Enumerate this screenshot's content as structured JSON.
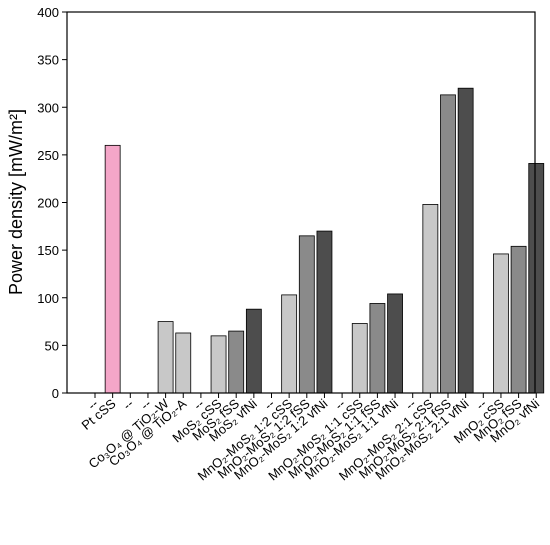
{
  "chart_data": {
    "type": "bar",
    "title": "",
    "xlabel": "",
    "ylabel": "Power density [mW/m²]",
    "ylim": [
      0,
      400
    ],
    "yticks": [
      0,
      50,
      100,
      150,
      200,
      250,
      300,
      350,
      400
    ],
    "grid": false,
    "legend": "none",
    "categories": [
      "--",
      "Pt cSS",
      "--",
      "--",
      "Co₃O₄ @ TiO₂-W",
      "Co₃O₄ @ TiO₂-A",
      "--",
      "MoS₂ cSS",
      "MoS₂ fSS",
      "MoS₂ vfNi",
      "--",
      "MnO₂-MoS₂ 1:2 cSS",
      "MnO₂-MoS₂ 1:2 fSS",
      "MnO₂-MoS₂ 1:2 vfNi",
      "--",
      "MnO₂-MoS₂ 1:1 cSS",
      "MnO₂-MoS₂ 1:1 fSS",
      "MnO₂-MoS₂ 1:1 vfNi",
      "--",
      "MnO₂-MoS₂ 2:1 cSS",
      "MnO₂-MoS₂ 2:1 fSS",
      "MnO₂-MoS₂ 2:1 vfNi",
      "--",
      "MnO₂ cSS",
      "MnO₂ fSS",
      "MnO₂ vfNi"
    ],
    "values": [
      null,
      260,
      null,
      null,
      75,
      63,
      null,
      60,
      65,
      88,
      null,
      103,
      165,
      170,
      null,
      73,
      94,
      104,
      null,
      198,
      313,
      320,
      null,
      146,
      154,
      241
    ],
    "bar_colors": [
      "",
      "#f4a6c8",
      "",
      "",
      "#c8c8c8",
      "#c8c8c8",
      "",
      "#c8c8c8",
      "#8a8a8a",
      "#4d4d4d",
      "",
      "#c8c8c8",
      "#8a8a8a",
      "#4d4d4d",
      "",
      "#c8c8c8",
      "#8a8a8a",
      "#4d4d4d",
      "",
      "#c8c8c8",
      "#8a8a8a",
      "#4d4d4d",
      "",
      "#c8c8c8",
      "#8a8a8a",
      "#4d4d4d"
    ]
  }
}
